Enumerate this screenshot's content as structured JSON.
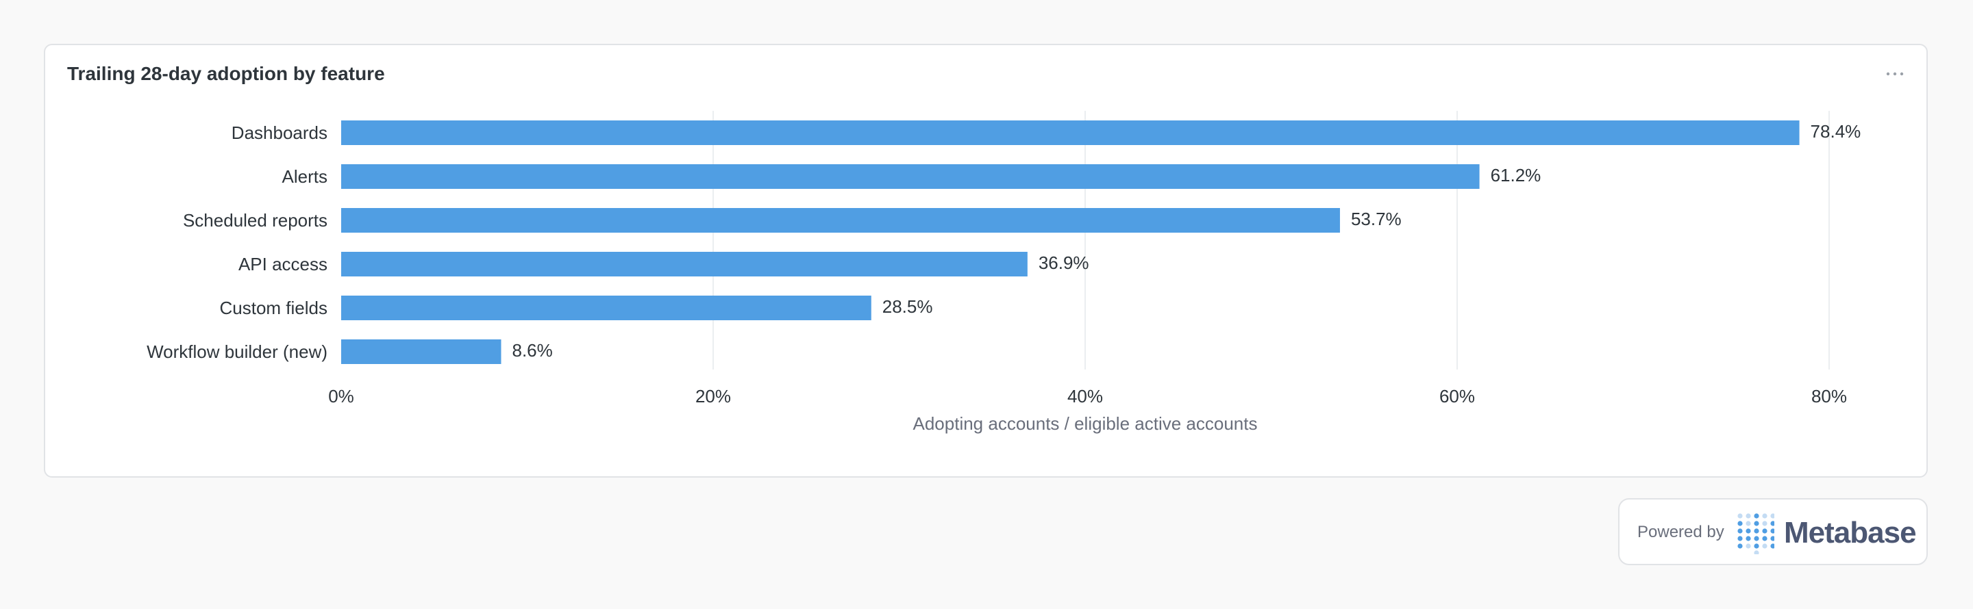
{
  "card": {
    "title": "Trailing 28-day adoption by feature"
  },
  "icons": {
    "more": "ellipsis-icon",
    "logo": "metabase-logo-icon"
  },
  "colors": {
    "bar": "#509ee3",
    "grid": "#ebeef0",
    "text": "#2e353b",
    "muted": "#696e7b"
  },
  "chart_data": {
    "type": "bar",
    "orientation": "horizontal",
    "categories": [
      "Dashboards",
      "Alerts",
      "Scheduled reports",
      "API access",
      "Custom fields",
      "Workflow builder (new)"
    ],
    "values": [
      78.4,
      61.2,
      53.7,
      36.9,
      28.5,
      8.6
    ],
    "data_labels": [
      "78.4%",
      "61.2%",
      "53.7%",
      "36.9%",
      "28.5%",
      "8.6%"
    ],
    "xlim": [
      0,
      80
    ],
    "x_ticks": [
      0,
      20,
      40,
      60,
      80
    ],
    "x_tick_labels": [
      "0%",
      "20%",
      "40%",
      "60%",
      "80%"
    ],
    "xlabel": "Adopting accounts / eligible active accounts",
    "grid": true
  },
  "badge": {
    "label": "Powered by",
    "name": "Metabase"
  }
}
